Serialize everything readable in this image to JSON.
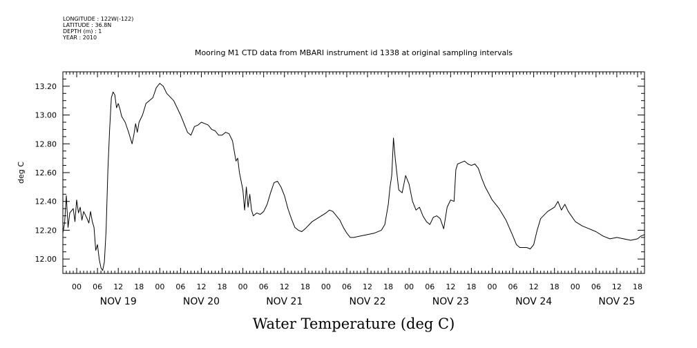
{
  "meta": {
    "lines": [
      "LONGITUDE : 122W(-122)",
      "LATITUDE : 36.8N",
      "DEPTH (m) : 1",
      "YEAR : 2010"
    ]
  },
  "chart_data": {
    "type": "line",
    "title": "Mooring M1 CTD data from MBARI instrument id 1338 at original sampling intervals",
    "xlabel": "Water Temperature (deg C)",
    "ylabel": "deg C",
    "ylim": [
      11.9,
      13.3
    ],
    "xlim": [
      "2010-11-18T20:00",
      "2010-11-25T20:00"
    ],
    "y_ticks": [
      "12.00",
      "12.20",
      "12.40",
      "12.60",
      "12.80",
      "13.00",
      "13.20"
    ],
    "x_hour_ticks": [
      {
        "time": "2010-11-19T00:00",
        "label": "00"
      },
      {
        "time": "2010-11-19T06:00",
        "label": "06"
      },
      {
        "time": "2010-11-19T12:00",
        "label": "12"
      },
      {
        "time": "2010-11-19T18:00",
        "label": "18"
      },
      {
        "time": "2010-11-20T00:00",
        "label": "00"
      },
      {
        "time": "2010-11-20T06:00",
        "label": "06"
      },
      {
        "time": "2010-11-20T12:00",
        "label": "12"
      },
      {
        "time": "2010-11-20T18:00",
        "label": "18"
      },
      {
        "time": "2010-11-21T00:00",
        "label": "00"
      },
      {
        "time": "2010-11-21T06:00",
        "label": "06"
      },
      {
        "time": "2010-11-21T12:00",
        "label": "12"
      },
      {
        "time": "2010-11-21T18:00",
        "label": "18"
      },
      {
        "time": "2010-11-22T00:00",
        "label": "00"
      },
      {
        "time": "2010-11-22T06:00",
        "label": "06"
      },
      {
        "time": "2010-11-22T12:00",
        "label": "12"
      },
      {
        "time": "2010-11-22T18:00",
        "label": "18"
      },
      {
        "time": "2010-11-23T00:00",
        "label": "00"
      },
      {
        "time": "2010-11-23T06:00",
        "label": "06"
      },
      {
        "time": "2010-11-23T12:00",
        "label": "12"
      },
      {
        "time": "2010-11-23T18:00",
        "label": "18"
      },
      {
        "time": "2010-11-24T00:00",
        "label": "00"
      },
      {
        "time": "2010-11-24T06:00",
        "label": "06"
      },
      {
        "time": "2010-11-24T12:00",
        "label": "12"
      },
      {
        "time": "2010-11-24T18:00",
        "label": "18"
      },
      {
        "time": "2010-11-25T00:00",
        "label": "00"
      },
      {
        "time": "2010-11-25T06:00",
        "label": "06"
      },
      {
        "time": "2010-11-25T12:00",
        "label": "12"
      },
      {
        "time": "2010-11-25T18:00",
        "label": "18"
      }
    ],
    "x_day_labels": [
      {
        "time": "2010-11-19T12:00",
        "label": "NOV 19"
      },
      {
        "time": "2010-11-20T12:00",
        "label": "NOV 20"
      },
      {
        "time": "2010-11-21T12:00",
        "label": "NOV 21"
      },
      {
        "time": "2010-11-22T12:00",
        "label": "NOV 22"
      },
      {
        "time": "2010-11-23T12:00",
        "label": "NOV 23"
      },
      {
        "time": "2010-11-24T12:00",
        "label": "NOV 24"
      },
      {
        "time": "2010-11-25T12:00",
        "label": "NOV 25"
      }
    ],
    "series": [
      {
        "color": "#000000",
        "points": [
          [
            "2010-11-18T20:00",
            12.18
          ],
          [
            "2010-11-18T20:30",
            12.25
          ],
          [
            "2010-11-18T21:00",
            12.44
          ],
          [
            "2010-11-18T21:30",
            12.22
          ],
          [
            "2010-11-18T22:00",
            12.32
          ],
          [
            "2010-11-18T23:00",
            12.35
          ],
          [
            "2010-11-18T23:30",
            12.26
          ],
          [
            "2010-11-19T00:00",
            12.41
          ],
          [
            "2010-11-19T00:30",
            12.32
          ],
          [
            "2010-11-19T01:00",
            12.36
          ],
          [
            "2010-11-19T01:30",
            12.27
          ],
          [
            "2010-11-19T02:00",
            12.33
          ],
          [
            "2010-11-19T03:00",
            12.28
          ],
          [
            "2010-11-19T03:30",
            12.25
          ],
          [
            "2010-11-19T04:00",
            12.33
          ],
          [
            "2010-11-19T04:30",
            12.26
          ],
          [
            "2010-11-19T05:00",
            12.22
          ],
          [
            "2010-11-19T05:30",
            12.06
          ],
          [
            "2010-11-19T06:00",
            12.1
          ],
          [
            "2010-11-19T06:30",
            12.0
          ],
          [
            "2010-11-19T07:00",
            11.94
          ],
          [
            "2010-11-19T07:30",
            11.92
          ],
          [
            "2010-11-19T08:00",
            11.98
          ],
          [
            "2010-11-19T08:30",
            12.2
          ],
          [
            "2010-11-19T09:00",
            12.62
          ],
          [
            "2010-11-19T09:30",
            12.9
          ],
          [
            "2010-11-19T10:00",
            13.12
          ],
          [
            "2010-11-19T10:30",
            13.16
          ],
          [
            "2010-11-19T11:00",
            13.14
          ],
          [
            "2010-11-19T11:30",
            13.05
          ],
          [
            "2010-11-19T12:00",
            13.08
          ],
          [
            "2010-11-19T12:30",
            13.04
          ],
          [
            "2010-11-19T13:00",
            12.99
          ],
          [
            "2010-11-19T14:00",
            12.95
          ],
          [
            "2010-11-19T15:00",
            12.88
          ],
          [
            "2010-11-19T16:00",
            12.8
          ],
          [
            "2010-11-19T16:30",
            12.86
          ],
          [
            "2010-11-19T17:00",
            12.94
          ],
          [
            "2010-11-19T17:30",
            12.88
          ],
          [
            "2010-11-19T18:00",
            12.95
          ],
          [
            "2010-11-19T19:00",
            13.0
          ],
          [
            "2010-11-19T20:00",
            13.08
          ],
          [
            "2010-11-19T22:00",
            13.12
          ],
          [
            "2010-11-19T23:00",
            13.19
          ],
          [
            "2010-11-20T00:00",
            13.22
          ],
          [
            "2010-11-20T01:00",
            13.2
          ],
          [
            "2010-11-20T02:00",
            13.15
          ],
          [
            "2010-11-20T04:00",
            13.1
          ],
          [
            "2010-11-20T05:00",
            13.05
          ],
          [
            "2010-11-20T06:00",
            13.0
          ],
          [
            "2010-11-20T07:00",
            12.94
          ],
          [
            "2010-11-20T08:00",
            12.88
          ],
          [
            "2010-11-20T09:00",
            12.86
          ],
          [
            "2010-11-20T10:00",
            12.92
          ],
          [
            "2010-11-20T11:00",
            12.93
          ],
          [
            "2010-11-20T12:00",
            12.95
          ],
          [
            "2010-11-20T13:00",
            12.94
          ],
          [
            "2010-11-20T14:00",
            12.93
          ],
          [
            "2010-11-20T15:00",
            12.9
          ],
          [
            "2010-11-20T16:00",
            12.89
          ],
          [
            "2010-11-20T17:00",
            12.86
          ],
          [
            "2010-11-20T18:00",
            12.86
          ],
          [
            "2010-11-20T19:00",
            12.88
          ],
          [
            "2010-11-20T20:00",
            12.87
          ],
          [
            "2010-11-20T21:00",
            12.82
          ],
          [
            "2010-11-20T22:00",
            12.68
          ],
          [
            "2010-11-20T22:30",
            12.7
          ],
          [
            "2010-11-20T23:00",
            12.6
          ],
          [
            "2010-11-21T00:00",
            12.48
          ],
          [
            "2010-11-21T00:30",
            12.34
          ],
          [
            "2010-11-21T01:00",
            12.5
          ],
          [
            "2010-11-21T01:30",
            12.36
          ],
          [
            "2010-11-21T02:00",
            12.45
          ],
          [
            "2010-11-21T02:30",
            12.34
          ],
          [
            "2010-11-21T03:00",
            12.3
          ],
          [
            "2010-11-21T04:00",
            12.32
          ],
          [
            "2010-11-21T05:00",
            12.31
          ],
          [
            "2010-11-21T06:00",
            12.33
          ],
          [
            "2010-11-21T07:00",
            12.38
          ],
          [
            "2010-11-21T08:00",
            12.46
          ],
          [
            "2010-11-21T09:00",
            12.53
          ],
          [
            "2010-11-21T10:00",
            12.54
          ],
          [
            "2010-11-21T11:00",
            12.5
          ],
          [
            "2010-11-21T12:00",
            12.44
          ],
          [
            "2010-11-21T13:00",
            12.35
          ],
          [
            "2010-11-21T14:00",
            12.28
          ],
          [
            "2010-11-21T15:00",
            12.22
          ],
          [
            "2010-11-21T16:00",
            12.2
          ],
          [
            "2010-11-21T17:00",
            12.19
          ],
          [
            "2010-11-21T18:00",
            12.21
          ],
          [
            "2010-11-21T20:00",
            12.26
          ],
          [
            "2010-11-21T22:00",
            12.29
          ],
          [
            "2010-11-22T00:00",
            12.32
          ],
          [
            "2010-11-22T01:00",
            12.34
          ],
          [
            "2010-11-22T02:00",
            12.33
          ],
          [
            "2010-11-22T03:00",
            12.3
          ],
          [
            "2010-11-22T04:00",
            12.27
          ],
          [
            "2010-11-22T05:00",
            12.22
          ],
          [
            "2010-11-22T06:00",
            12.18
          ],
          [
            "2010-11-22T07:00",
            12.15
          ],
          [
            "2010-11-22T08:00",
            12.15
          ],
          [
            "2010-11-22T10:00",
            12.16
          ],
          [
            "2010-11-22T12:00",
            12.17
          ],
          [
            "2010-11-22T14:00",
            12.18
          ],
          [
            "2010-11-22T16:00",
            12.2
          ],
          [
            "2010-11-22T17:00",
            12.24
          ],
          [
            "2010-11-22T18:00",
            12.38
          ],
          [
            "2010-11-22T18:30",
            12.5
          ],
          [
            "2010-11-22T19:00",
            12.58
          ],
          [
            "2010-11-22T19:30",
            12.84
          ],
          [
            "2010-11-22T20:00",
            12.7
          ],
          [
            "2010-11-22T21:00",
            12.48
          ],
          [
            "2010-11-22T22:00",
            12.46
          ],
          [
            "2010-11-22T23:00",
            12.58
          ],
          [
            "2010-11-23T00:00",
            12.52
          ],
          [
            "2010-11-23T01:00",
            12.4
          ],
          [
            "2010-11-23T02:00",
            12.34
          ],
          [
            "2010-11-23T03:00",
            12.36
          ],
          [
            "2010-11-23T04:00",
            12.3
          ],
          [
            "2010-11-23T05:00",
            12.26
          ],
          [
            "2010-11-23T06:00",
            12.24
          ],
          [
            "2010-11-23T07:00",
            12.29
          ],
          [
            "2010-11-23T08:00",
            12.3
          ],
          [
            "2010-11-23T09:00",
            12.28
          ],
          [
            "2010-11-23T10:00",
            12.21
          ],
          [
            "2010-11-23T11:00",
            12.36
          ],
          [
            "2010-11-23T12:00",
            12.41
          ],
          [
            "2010-11-23T13:00",
            12.4
          ],
          [
            "2010-11-23T13:30",
            12.62
          ],
          [
            "2010-11-23T14:00",
            12.66
          ],
          [
            "2010-11-23T15:00",
            12.67
          ],
          [
            "2010-11-23T16:00",
            12.68
          ],
          [
            "2010-11-23T17:00",
            12.66
          ],
          [
            "2010-11-23T18:00",
            12.65
          ],
          [
            "2010-11-23T19:00",
            12.66
          ],
          [
            "2010-11-23T20:00",
            12.63
          ],
          [
            "2010-11-23T21:00",
            12.56
          ],
          [
            "2010-11-23T22:00",
            12.5
          ],
          [
            "2010-11-24T00:00",
            12.41
          ],
          [
            "2010-11-24T02:00",
            12.35
          ],
          [
            "2010-11-24T04:00",
            12.27
          ],
          [
            "2010-11-24T06:00",
            12.16
          ],
          [
            "2010-11-24T07:00",
            12.1
          ],
          [
            "2010-11-24T08:00",
            12.08
          ],
          [
            "2010-11-24T10:00",
            12.08
          ],
          [
            "2010-11-24T11:00",
            12.07
          ],
          [
            "2010-11-24T12:00",
            12.1
          ],
          [
            "2010-11-24T13:00",
            12.2
          ],
          [
            "2010-11-24T14:00",
            12.28
          ],
          [
            "2010-11-24T16:00",
            12.33
          ],
          [
            "2010-11-24T18:00",
            12.36
          ],
          [
            "2010-11-24T19:00",
            12.4
          ],
          [
            "2010-11-24T20:00",
            12.34
          ],
          [
            "2010-11-24T21:00",
            12.38
          ],
          [
            "2010-11-24T22:00",
            12.33
          ],
          [
            "2010-11-25T00:00",
            12.26
          ],
          [
            "2010-11-25T02:00",
            12.23
          ],
          [
            "2010-11-25T04:00",
            12.21
          ],
          [
            "2010-11-25T06:00",
            12.19
          ],
          [
            "2010-11-25T08:00",
            12.16
          ],
          [
            "2010-11-25T10:00",
            12.14
          ],
          [
            "2010-11-25T12:00",
            12.15
          ],
          [
            "2010-11-25T14:00",
            12.14
          ],
          [
            "2010-11-25T16:00",
            12.13
          ],
          [
            "2010-11-25T18:00",
            12.14
          ],
          [
            "2010-11-25T19:00",
            12.16
          ],
          [
            "2010-11-25T20:00",
            12.17
          ]
        ]
      }
    ]
  }
}
